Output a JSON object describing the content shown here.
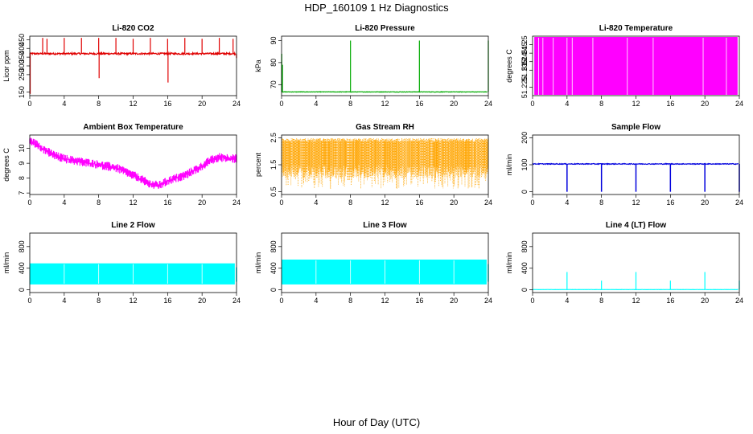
{
  "figure": {
    "title": "HDP_160109  1 Hz Diagnostics",
    "xlabel": "Hour of Day (UTC)"
  },
  "chart_data": [
    {
      "type": "line",
      "title": "Li-820 CO2",
      "ylabel": "Licor ppm",
      "color": "#e00000",
      "xlim": [
        0,
        24
      ],
      "ylim": [
        130,
        470
      ],
      "xticks": [
        0,
        4,
        8,
        12,
        16,
        20,
        24
      ],
      "yticks": [
        150,
        250,
        300,
        350,
        400,
        450
      ],
      "baseline": 370,
      "noise": 10,
      "spikes": [
        {
          "x": 0.05,
          "y": 140
        },
        {
          "x": 1.5,
          "y": 460
        },
        {
          "x": 2.0,
          "y": 455
        },
        {
          "x": 4.0,
          "y": 460
        },
        {
          "x": 6.0,
          "y": 460
        },
        {
          "x": 8.0,
          "y": 460
        },
        {
          "x": 8.05,
          "y": 230
        },
        {
          "x": 10.0,
          "y": 460
        },
        {
          "x": 12.0,
          "y": 455
        },
        {
          "x": 14.0,
          "y": 460
        },
        {
          "x": 16.0,
          "y": 455
        },
        {
          "x": 16.05,
          "y": 205
        },
        {
          "x": 18.0,
          "y": 460
        },
        {
          "x": 20.0,
          "y": 455
        },
        {
          "x": 22.0,
          "y": 460
        },
        {
          "x": 23.6,
          "y": 455
        },
        {
          "x": 24.0,
          "y": 345
        }
      ]
    },
    {
      "type": "line",
      "title": "Li-820 Pressure",
      "ylabel": "kPa",
      "color": "#00aa00",
      "xlim": [
        0,
        24
      ],
      "ylim": [
        65,
        92
      ],
      "xticks": [
        0,
        4,
        8,
        12,
        16,
        20,
        24
      ],
      "yticks": [
        70,
        80,
        90
      ],
      "baseline": 66.7,
      "noise": 0.2,
      "spikes": [
        {
          "x": 0.02,
          "y": 84
        },
        {
          "x": 0.1,
          "y": 79
        },
        {
          "x": 8.0,
          "y": 90
        },
        {
          "x": 16.0,
          "y": 90
        },
        {
          "x": 24.0,
          "y": 90
        }
      ]
    },
    {
      "type": "line",
      "title": "Li-820 Temperature",
      "ylabel": "degrees C",
      "color": "#ff00ff",
      "xlim": [
        0,
        24
      ],
      "ylim": [
        51.22,
        51.255
      ],
      "xticks": [
        0,
        4,
        8,
        12,
        16,
        20,
        24
      ],
      "yticks": [
        51.225,
        51.235,
        51.24,
        51.245,
        51.25
      ],
      "band": [
        0.2,
        23.8
      ],
      "gaps": [
        0.7,
        1.2,
        2.4,
        4.0,
        4.6,
        7.0,
        11.0,
        14.0,
        19.8,
        22.5
      ]
    },
    {
      "type": "line",
      "title": "Ambient Box Temperature",
      "ylabel": "degrees C",
      "color": "#ff00ff",
      "xlim": [
        0,
        24
      ],
      "ylim": [
        6.9,
        10.9
      ],
      "xticks": [
        0,
        4,
        8,
        12,
        16,
        20,
        24
      ],
      "yticks": [
        7,
        8,
        9,
        10
      ],
      "curve": [
        {
          "x": 0,
          "y": 10.5
        },
        {
          "x": 1,
          "y": 10.2
        },
        {
          "x": 2,
          "y": 9.8
        },
        {
          "x": 3,
          "y": 9.5
        },
        {
          "x": 4,
          "y": 9.3
        },
        {
          "x": 6,
          "y": 9.1
        },
        {
          "x": 8,
          "y": 8.9
        },
        {
          "x": 10,
          "y": 8.7
        },
        {
          "x": 12,
          "y": 8.2
        },
        {
          "x": 14,
          "y": 7.6
        },
        {
          "x": 15,
          "y": 7.5
        },
        {
          "x": 16,
          "y": 7.8
        },
        {
          "x": 18,
          "y": 8.2
        },
        {
          "x": 20,
          "y": 8.8
        },
        {
          "x": 21,
          "y": 9.2
        },
        {
          "x": 22,
          "y": 9.4
        },
        {
          "x": 24,
          "y": 9.3
        }
      ],
      "noise": 0.3
    },
    {
      "type": "scatter",
      "title": "Gas Stream RH",
      "ylabel": "percent",
      "color": "#ffa500",
      "xlim": [
        0,
        24
      ],
      "ylim": [
        0.4,
        2.6
      ],
      "xticks": [
        0,
        4,
        8,
        12,
        16,
        20,
        24
      ],
      "yticks": [
        0.5,
        1.5,
        2.5
      ],
      "band_top": 2.4,
      "band_bottom": 1.5,
      "min": 0.6
    },
    {
      "type": "line",
      "title": "Sample Flow",
      "ylabel": "ml/min",
      "color": "#0000dd",
      "xlim": [
        0,
        24
      ],
      "ylim": [
        -10,
        210
      ],
      "xticks": [
        0,
        4,
        8,
        12,
        16,
        20,
        24
      ],
      "yticks": [
        0,
        100,
        200
      ],
      "baseline": 103,
      "noise": 3,
      "dips": [
        {
          "x": 4.0,
          "y": 0
        },
        {
          "x": 8.0,
          "y": 0
        },
        {
          "x": 12.0,
          "y": 0
        },
        {
          "x": 16.0,
          "y": 0
        },
        {
          "x": 20.0,
          "y": 0
        },
        {
          "x": 24.0,
          "y": 0
        }
      ]
    },
    {
      "type": "area",
      "title": "Line 2 Flow",
      "ylabel": "ml/min",
      "color": "#00ffff",
      "xlim": [
        0,
        24
      ],
      "ylim": [
        -50,
        1050
      ],
      "xticks": [
        0,
        4,
        8,
        12,
        16,
        20,
        24
      ],
      "yticks": [
        0,
        400,
        800
      ],
      "band": [
        0.0,
        23.8
      ],
      "top": 490,
      "bottom": 100,
      "gaps": [
        4.0,
        8.0,
        12.0,
        16.0,
        20.0
      ]
    },
    {
      "type": "area",
      "title": "Line 3 Flow",
      "ylabel": "ml/min",
      "color": "#00ffff",
      "xlim": [
        0,
        24
      ],
      "ylim": [
        -50,
        1050
      ],
      "xticks": [
        0,
        4,
        8,
        12,
        16,
        20,
        24
      ],
      "yticks": [
        0,
        400,
        800
      ],
      "band": [
        0.0,
        23.8
      ],
      "top": 560,
      "bottom": 100,
      "gaps": [
        4.0,
        8.0,
        12.0,
        16.0,
        20.0
      ]
    },
    {
      "type": "line",
      "title": "Line 4 (LT) Flow",
      "ylabel": "ml/min",
      "color": "#00ffff",
      "xlim": [
        0,
        24
      ],
      "ylim": [
        -50,
        1050
      ],
      "xticks": [
        0,
        4,
        8,
        12,
        16,
        20,
        24
      ],
      "yticks": [
        0,
        400,
        800
      ],
      "baseline": 5,
      "noise": 4,
      "spikes": [
        {
          "x": 4.0,
          "y": 330
        },
        {
          "x": 8.0,
          "y": 170
        },
        {
          "x": 12.0,
          "y": 330
        },
        {
          "x": 16.0,
          "y": 170
        },
        {
          "x": 20.0,
          "y": 330
        },
        {
          "x": 24.0,
          "y": 170
        }
      ]
    }
  ]
}
